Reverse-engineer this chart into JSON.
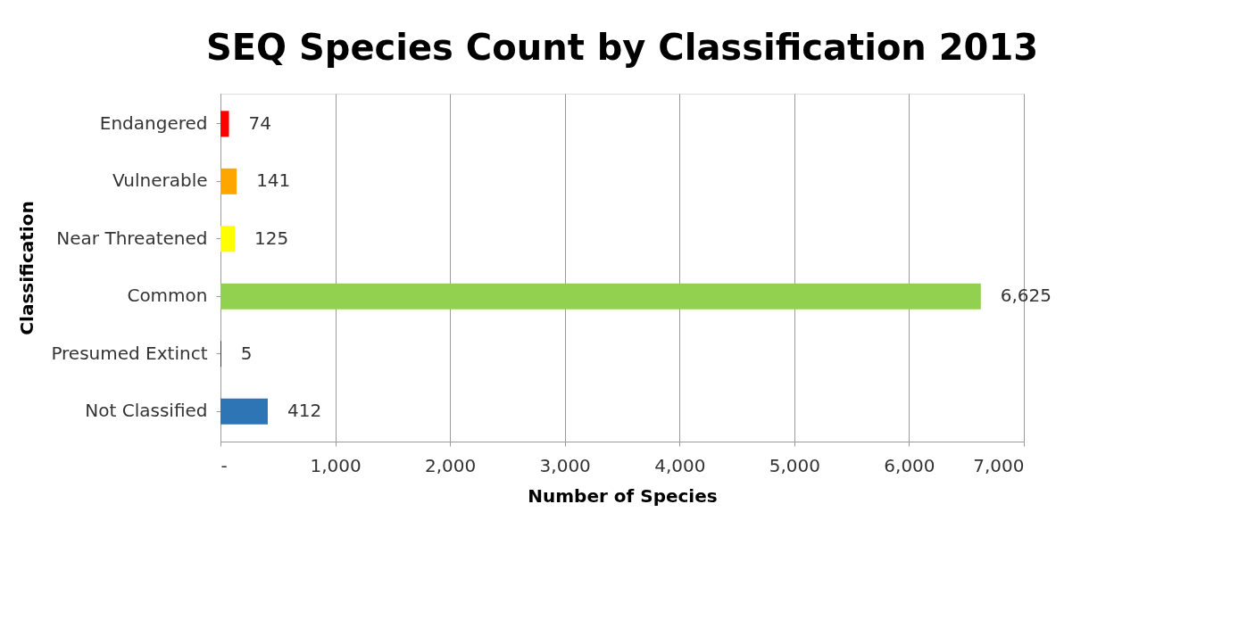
{
  "chart_data": {
    "type": "bar",
    "orientation": "horizontal",
    "title": "SEQ Species Count by Classification 2013",
    "xlabel": "Number of Species",
    "ylabel": "Classification",
    "categories": [
      "Endangered",
      "Vulnerable",
      "Near Threatened",
      "Common",
      "Presumed Extinct",
      "Not Classified"
    ],
    "values": [
      74,
      141,
      125,
      6625,
      5,
      412
    ],
    "colors": [
      "#ff0000",
      "#ffa500",
      "#ffff00",
      "#92d050",
      "#000000",
      "#2e75b6"
    ],
    "value_labels": [
      "74",
      "141",
      "125",
      "6,625",
      "5",
      "412"
    ],
    "xlim": [
      0,
      7000
    ],
    "xticks": [
      {
        "value": 0,
        "label": "-"
      },
      {
        "value": 1000,
        "label": "1,000"
      },
      {
        "value": 2000,
        "label": "2,000"
      },
      {
        "value": 3000,
        "label": "3,000"
      },
      {
        "value": 4000,
        "label": "4,000"
      },
      {
        "value": 5000,
        "label": "5,000"
      },
      {
        "value": 6000,
        "label": "6,000"
      },
      {
        "value": 7000,
        "label": "7,000"
      }
    ],
    "grid": "x"
  }
}
